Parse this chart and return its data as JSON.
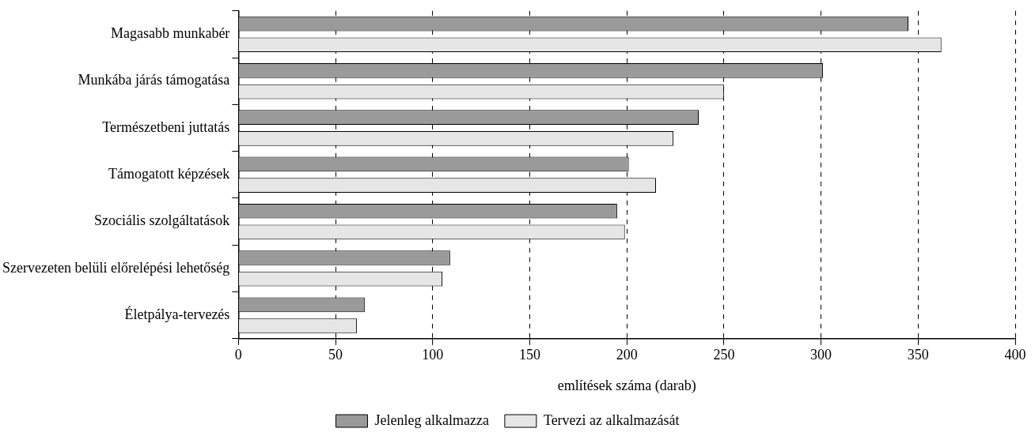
{
  "chart_data": {
    "type": "bar",
    "orientation": "horizontal",
    "xlabel": "említések száma (darab)",
    "categories": [
      "Magasabb munkabér",
      "Munkába járás támogatása",
      "Természetbeni juttatás",
      "Támogatott képzések",
      "Szociális szolgáltatások",
      "Szervezeten belüli előrelépési lehetőség",
      "Életpálya-tervezés"
    ],
    "series": [
      {
        "name": "Jelenleg alkalmazza",
        "color": "#9a9a9a",
        "values": [
          345,
          301,
          237,
          201,
          195,
          109,
          65
        ]
      },
      {
        "name": "Tervezi az alkalmazását",
        "color": "#e6e6e6",
        "values": [
          362,
          250,
          224,
          215,
          199,
          105,
          61
        ]
      }
    ],
    "xlim": [
      0,
      400
    ],
    "xticks": [
      0,
      50,
      100,
      150,
      200,
      250,
      300,
      350,
      400
    ],
    "grid": "x",
    "legend": "bottom"
  }
}
